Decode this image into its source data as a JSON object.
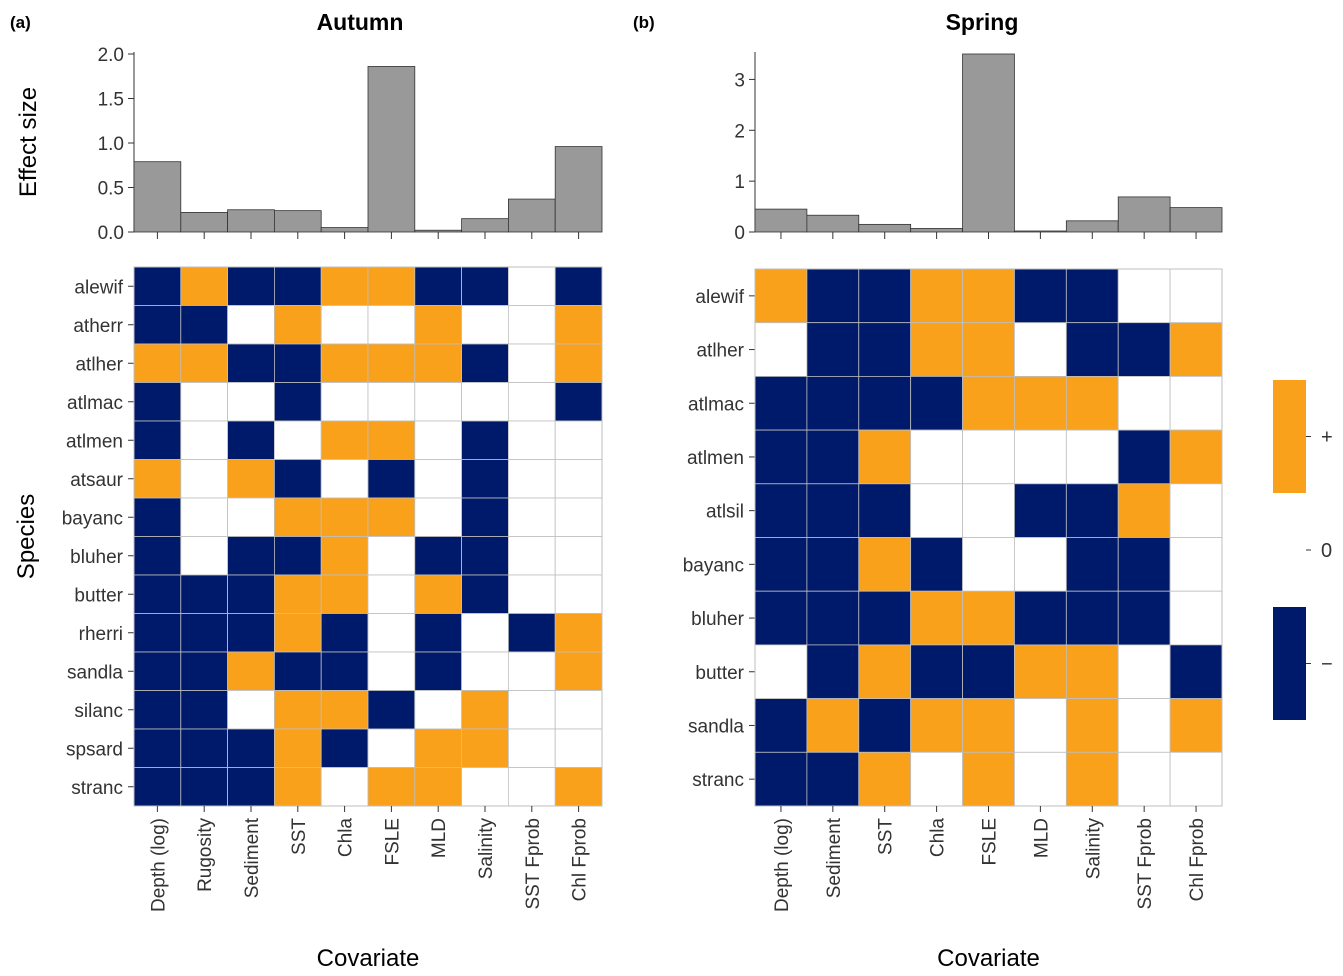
{
  "colors": {
    "positive": "#F9A11B",
    "negative": "#001A6B",
    "none": "#FFFFFF",
    "bar_fill": "#999999",
    "grid_line": "#BFBFBF"
  },
  "legend": {
    "labels": [
      "+",
      "0",
      "−"
    ]
  },
  "panels": [
    {
      "tag": "(a)",
      "title": "Autumn",
      "bar_ylabel": "Effect  size",
      "heat_ylabel": "Species",
      "xlabel": "Covariate"
    },
    {
      "tag": "(b)",
      "title": "Spring",
      "bar_ylabel": "",
      "heat_ylabel": "",
      "xlabel": "Covariate"
    }
  ],
  "chart_data": [
    {
      "type": "bar",
      "panel": "Autumn",
      "categories": [
        "Depth (log)",
        "Rugosity",
        "Sediment",
        "SST",
        "Chla",
        "FSLE",
        "MLD",
        "Salinity",
        "SST Fprob",
        "Chl Fprob"
      ],
      "values": [
        0.79,
        0.22,
        0.25,
        0.24,
        0.05,
        1.86,
        0.02,
        0.15,
        0.37,
        0.96
      ],
      "ylim": [
        0,
        2.0
      ],
      "yticks": [
        "0.0",
        "0.5",
        "1.0",
        "1.5",
        "2.0"
      ],
      "ylabel": "Effect  size"
    },
    {
      "type": "heatmap",
      "panel": "Autumn",
      "x": [
        "Depth (log)",
        "Rugosity",
        "Sediment",
        "SST",
        "Chla",
        "FSLE",
        "MLD",
        "Salinity",
        "SST Fprob",
        "Chl Fprob"
      ],
      "y": [
        "alewif",
        "atherr",
        "atlher",
        "atlmac",
        "atlmen",
        "atsaur",
        "bayanc",
        "bluher",
        "butter",
        "rherri",
        "sandla",
        "silanc",
        "spsard",
        "stranc"
      ],
      "values": [
        [
          -1,
          1,
          -1,
          -1,
          1,
          1,
          -1,
          -1,
          0,
          -1
        ],
        [
          -1,
          -1,
          0,
          1,
          0,
          0,
          1,
          0,
          0,
          1
        ],
        [
          1,
          1,
          -1,
          -1,
          1,
          1,
          1,
          -1,
          0,
          1
        ],
        [
          -1,
          0,
          0,
          -1,
          0,
          0,
          0,
          0,
          0,
          -1
        ],
        [
          -1,
          0,
          -1,
          0,
          1,
          1,
          0,
          -1,
          0,
          0
        ],
        [
          1,
          0,
          1,
          -1,
          0,
          -1,
          0,
          -1,
          0,
          0
        ],
        [
          -1,
          0,
          0,
          1,
          1,
          1,
          0,
          -1,
          0,
          0
        ],
        [
          -1,
          0,
          -1,
          -1,
          1,
          0,
          -1,
          -1,
          0,
          0
        ],
        [
          -1,
          -1,
          -1,
          1,
          1,
          0,
          1,
          -1,
          0,
          0
        ],
        [
          -1,
          -1,
          -1,
          1,
          -1,
          0,
          -1,
          0,
          -1,
          1
        ],
        [
          -1,
          -1,
          1,
          -1,
          -1,
          0,
          -1,
          0,
          0,
          1
        ],
        [
          -1,
          -1,
          0,
          1,
          1,
          -1,
          0,
          1,
          0,
          0
        ],
        [
          -1,
          -1,
          -1,
          1,
          -1,
          0,
          1,
          1,
          0,
          0
        ],
        [
          -1,
          -1,
          -1,
          1,
          0,
          1,
          1,
          0,
          0,
          1
        ]
      ],
      "xlabel": "Covariate",
      "ylabel": "Species"
    },
    {
      "type": "bar",
      "panel": "Spring",
      "categories": [
        "Depth (log)",
        "Sediment",
        "SST",
        "Chla",
        "FSLE",
        "MLD",
        "Salinity",
        "SST Fprob",
        "Chl Fprob"
      ],
      "values": [
        0.45,
        0.33,
        0.15,
        0.07,
        3.5,
        0.02,
        0.22,
        0.69,
        0.48
      ],
      "ylim": [
        0,
        3.5
      ],
      "yticks": [
        "0",
        "1",
        "2",
        "3"
      ],
      "ylabel": ""
    },
    {
      "type": "heatmap",
      "panel": "Spring",
      "x": [
        "Depth (log)",
        "Sediment",
        "SST",
        "Chla",
        "FSLE",
        "MLD",
        "Salinity",
        "SST Fprob",
        "Chl Fprob"
      ],
      "y": [
        "alewif",
        "atlher",
        "atlmac",
        "atlmen",
        "atlsil",
        "bayanc",
        "bluher",
        "butter",
        "sandla",
        "stranc"
      ],
      "values": [
        [
          1,
          -1,
          -1,
          1,
          1,
          -1,
          -1,
          0,
          0
        ],
        [
          0,
          -1,
          -1,
          1,
          1,
          0,
          -1,
          -1,
          1
        ],
        [
          -1,
          -1,
          -1,
          -1,
          1,
          1,
          1,
          0,
          0
        ],
        [
          -1,
          -1,
          1,
          0,
          0,
          0,
          0,
          -1,
          1
        ],
        [
          -1,
          -1,
          -1,
          0,
          0,
          -1,
          -1,
          1,
          0
        ],
        [
          -1,
          -1,
          1,
          -1,
          0,
          0,
          -1,
          -1,
          0
        ],
        [
          -1,
          -1,
          -1,
          1,
          1,
          -1,
          -1,
          -1,
          0
        ],
        [
          0,
          -1,
          1,
          -1,
          -1,
          1,
          1,
          0,
          -1
        ],
        [
          -1,
          1,
          -1,
          1,
          1,
          0,
          1,
          0,
          1
        ],
        [
          -1,
          -1,
          1,
          0,
          1,
          0,
          1,
          0,
          0
        ]
      ],
      "xlabel": "Covariate",
      "ylabel": ""
    }
  ]
}
